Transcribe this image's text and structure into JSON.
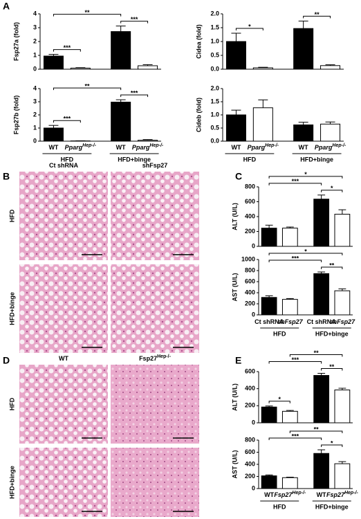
{
  "panel_labels": [
    "A",
    "B",
    "C",
    "D",
    "E"
  ],
  "image_panels": [
    {
      "columns": [
        {
          "label": "Ct shRNA"
        },
        {
          "label": "shFsp27"
        }
      ],
      "rows": [
        "HFD",
        "HFD+binge"
      ]
    },
    {
      "columns": [
        {
          "label": "WT"
        },
        {
          "label": "Fsp27",
          "superscript": "Hep-/-"
        }
      ],
      "rows": [
        "HFD",
        "HFD+binge"
      ]
    }
  ],
  "chart_data": [
    {
      "type": "bar",
      "y_label": "Fsp27a (fold)",
      "values": [
        0.95,
        0.08,
        2.72,
        0.25
      ],
      "errors": [
        0.12,
        0.03,
        0.4,
        0.08
      ],
      "colors": [
        "#000000",
        "#ffffff",
        "#000000",
        "#ffffff"
      ],
      "ylim": [
        0,
        4
      ],
      "yticks": [
        0,
        1,
        2,
        3,
        4
      ],
      "brackets": [
        {
          "from": 0,
          "to": 1,
          "label": "***"
        },
        {
          "from": 2,
          "to": 3,
          "label": "***"
        },
        {
          "from": 0,
          "to": 2,
          "label": "**"
        }
      ]
    },
    {
      "type": "bar",
      "y_label": "Cidea (fold)",
      "values": [
        1.0,
        0.05,
        1.47,
        0.13
      ],
      "errors": [
        0.3,
        0.02,
        0.27,
        0.03
      ],
      "colors": [
        "#000000",
        "#ffffff",
        "#000000",
        "#ffffff"
      ],
      "ylim": [
        0,
        2
      ],
      "yticks": [
        {
          "value": 0,
          "label": "0.0"
        },
        0.5,
        {
          "value": 1,
          "label": "1.0"
        },
        1.5,
        {
          "value": 2,
          "label": "2.0"
        }
      ],
      "brackets": [
        {
          "from": 0,
          "to": 1,
          "label": "*"
        },
        {
          "from": 2,
          "to": 3,
          "label": "**"
        }
      ]
    },
    {
      "type": "bar",
      "y_label": "Fsp27b (fold)",
      "categories": [
        "WT",
        "Pparg",
        "WT",
        "Pparg"
      ],
      "category_superscripts": [
        null,
        "Hep-/-",
        null,
        "Hep-/-"
      ],
      "groups": [
        "HFD",
        "HFD+binge"
      ],
      "values": [
        1.0,
        0.02,
        2.97,
        0.07
      ],
      "errors": [
        0.2,
        0.01,
        0.18,
        0.05
      ],
      "colors": [
        "#000000",
        "#ffffff",
        "#000000",
        "#ffffff"
      ],
      "ylim": [
        0,
        4
      ],
      "yticks": [
        0,
        1,
        2,
        3,
        4
      ],
      "brackets": [
        {
          "from": 0,
          "to": 1,
          "label": "***"
        },
        {
          "from": 2,
          "to": 3,
          "label": "***"
        },
        {
          "from": 0,
          "to": 2,
          "label": "**"
        }
      ]
    },
    {
      "type": "bar",
      "y_label": "Cideb (fold)",
      "categories": [
        "WT",
        "Pparg",
        "WT",
        "Pparg"
      ],
      "category_superscripts": [
        null,
        "Hep-/-",
        null,
        "Hep-/-"
      ],
      "groups": [
        "HFD",
        "HFD+binge"
      ],
      "values": [
        1.0,
        1.27,
        0.62,
        0.65
      ],
      "errors": [
        0.18,
        0.3,
        0.1,
        0.08
      ],
      "colors": [
        "#000000",
        "#ffffff",
        "#000000",
        "#ffffff"
      ],
      "ylim": [
        0,
        2
      ],
      "yticks": [
        {
          "value": 0,
          "label": "0.0"
        },
        0.5,
        {
          "value": 1,
          "label": "1.0"
        },
        1.5,
        {
          "value": 2,
          "label": "2.0"
        }
      ],
      "brackets": []
    },
    {
      "type": "bar",
      "y_label": "ALT (U/L)",
      "values": [
        245,
        245,
        635,
        432
      ],
      "errors": [
        40,
        15,
        55,
        60
      ],
      "colors": [
        "#000000",
        "#ffffff",
        "#000000",
        "#ffffff"
      ],
      "ylim": [
        0,
        800
      ],
      "yticks": [
        0,
        200,
        400,
        600,
        800
      ],
      "brackets": [
        {
          "from": 2,
          "to": 3,
          "label": "*"
        },
        {
          "from": 0,
          "to": 2,
          "label": "***"
        },
        {
          "from": 0,
          "to": 3,
          "label": "*"
        }
      ]
    },
    {
      "type": "bar",
      "y_label": "AST (U/L)",
      "categories": [
        "Ct shRNA",
        "shFsp27",
        "Ct shRNA",
        "shFsp27"
      ],
      "groups": [
        "HFD",
        "HFD+binge"
      ],
      "values": [
        315,
        280,
        745,
        435
      ],
      "errors": [
        30,
        15,
        30,
        35
      ],
      "colors": [
        "#000000",
        "#ffffff",
        "#000000",
        "#ffffff"
      ],
      "ylim": [
        0,
        1000
      ],
      "yticks": [
        0,
        200,
        400,
        600,
        800,
        1000
      ],
      "brackets": [
        {
          "from": 2,
          "to": 3,
          "label": "**"
        },
        {
          "from": 0,
          "to": 2,
          "label": "***"
        },
        {
          "from": 0,
          "to": 3,
          "label": "*"
        }
      ]
    },
    {
      "type": "bar",
      "y_label": "ALT (U/L)",
      "values": [
        185,
        135,
        555,
        385
      ],
      "errors": [
        12,
        10,
        25,
        20
      ],
      "colors": [
        "#000000",
        "#ffffff",
        "#000000",
        "#ffffff"
      ],
      "ylim": [
        0,
        600
      ],
      "yticks": [
        0,
        200,
        400,
        600
      ],
      "brackets": [
        {
          "from": 0,
          "to": 1,
          "label": "*"
        },
        {
          "from": 2,
          "to": 3,
          "label": "**"
        },
        {
          "from": 0,
          "to": 2,
          "label": "***"
        },
        {
          "from": 1,
          "to": 3,
          "label": "**"
        }
      ]
    },
    {
      "type": "bar",
      "y_label": "AST (U/L)",
      "categories": [
        "WT",
        "Fsp27",
        "WT",
        "Fsp27"
      ],
      "category_superscripts": [
        null,
        "Hep-/-",
        null,
        "Hep-/-"
      ],
      "groups": [
        "HFD",
        "HFD+binge"
      ],
      "values": [
        210,
        180,
        580,
        410
      ],
      "errors": [
        15,
        8,
        60,
        35
      ],
      "colors": [
        "#000000",
        "#ffffff",
        "#000000",
        "#ffffff"
      ],
      "ylim": [
        0,
        800
      ],
      "yticks": [
        0,
        200,
        400,
        600,
        800
      ],
      "brackets": [
        {
          "from": 2,
          "to": 3,
          "label": "*"
        },
        {
          "from": 0,
          "to": 2,
          "label": "***"
        },
        {
          "from": 1,
          "to": 3,
          "label": "**"
        }
      ]
    }
  ]
}
